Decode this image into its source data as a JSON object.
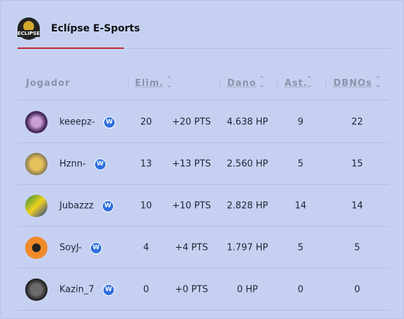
{
  "header": {
    "logo": "ECLIPSE",
    "title": "Eclípse E-Sports"
  },
  "table": {
    "columns": [
      "Jogador",
      "Elim.",
      "Dano",
      "Ast.",
      "DBNOs"
    ],
    "rows": [
      [
        "keeepz-",
        "20",
        "+20 PTS",
        "4.638 HP",
        "9",
        "22"
      ],
      [
        "Hznn-",
        "13",
        "+13 PTS",
        "2.560 HP",
        "5",
        "15"
      ],
      [
        "Jubazzz",
        "10",
        "+10 PTS",
        "2.828 HP",
        "14",
        "14"
      ],
      [
        "SoyJ-",
        "4",
        "+4 PTS",
        "1.797 HP",
        "5",
        "5"
      ],
      [
        "Kazin_7",
        "0",
        "+0 PTS",
        "0 HP",
        "0",
        "0"
      ]
    ]
  }
}
